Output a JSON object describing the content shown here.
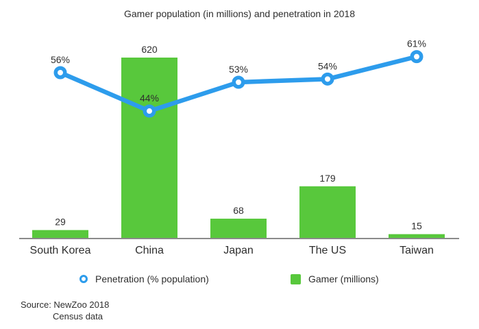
{
  "title": "Gamer population (in millions) and penetration in 2018",
  "legend": {
    "penetration_label": "Penetration (% population)",
    "gamer_label": "Gamer (millions)"
  },
  "source": {
    "line1": "Source: NewZoo 2018",
    "line2": "Census data"
  },
  "colors": {
    "bar_green": "#58c83c",
    "line_blue": "#2d9cec",
    "axis_gray": "#8a8a8a",
    "text_dark": "#2e2e2e"
  },
  "chart_data": {
    "type": "bar+line",
    "title": "Gamer population (in millions) and penetration in 2018",
    "categories": [
      "South Korea",
      "China",
      "Japan",
      "The US",
      "Taiwan"
    ],
    "series": [
      {
        "name": "Gamer (millions)",
        "type": "bar",
        "values": [
          29,
          620,
          68,
          179,
          15
        ],
        "labels": [
          "29",
          "620",
          "68",
          "179",
          "15"
        ],
        "color": "#58c83c"
      },
      {
        "name": "Penetration (% population)",
        "type": "line",
        "values": [
          56,
          44,
          53,
          54,
          61
        ],
        "labels": [
          "56%",
          "44%",
          "53%",
          "54%",
          "61%"
        ],
        "color": "#2d9cec"
      }
    ],
    "bar_axis_range": [
      0,
      620
    ],
    "line_axis_unit": "percent",
    "grid": false,
    "y_axis_visible": false,
    "legend_position": "bottom",
    "source_note": "Source: NewZoo 2018 Census data"
  }
}
